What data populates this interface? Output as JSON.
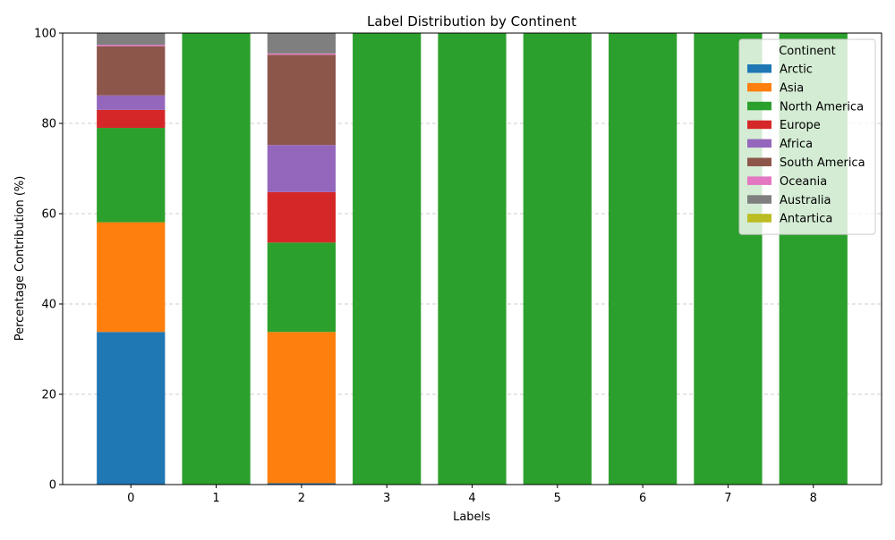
{
  "chart_data": {
    "type": "bar",
    "stacked": true,
    "title": "Label Distribution by Continent",
    "xlabel": "Labels",
    "ylabel": "Percentage Contribution (%)",
    "ylim": [
      0,
      100
    ],
    "yticks": [
      0,
      20,
      40,
      60,
      80,
      100
    ],
    "grid": "y-dashed",
    "legend": {
      "title": "Continent",
      "placement": "top-right"
    },
    "categories": [
      "0",
      "1",
      "2",
      "3",
      "4",
      "5",
      "6",
      "7",
      "8"
    ],
    "series": [
      {
        "name": "Arctic",
        "color": "#1f77b4",
        "values": [
          33.8,
          0,
          0.3,
          0,
          0,
          0,
          0,
          0,
          0
        ]
      },
      {
        "name": "Asia",
        "color": "#ff7f0e",
        "values": [
          24.3,
          0,
          33.5,
          0,
          0,
          0,
          0,
          0,
          0
        ]
      },
      {
        "name": "North America",
        "color": "#2ca02c",
        "values": [
          20.9,
          100,
          19.8,
          100,
          100,
          100,
          100,
          100,
          100
        ]
      },
      {
        "name": "Europe",
        "color": "#d62728",
        "values": [
          4.0,
          0,
          11.2,
          0,
          0,
          0,
          0,
          0,
          0
        ]
      },
      {
        "name": "Africa",
        "color": "#9467bd",
        "values": [
          3.2,
          0,
          10.4,
          0,
          0,
          0,
          0,
          0,
          0
        ]
      },
      {
        "name": "South America",
        "color": "#8c564b",
        "values": [
          10.9,
          0,
          20.0,
          0,
          0,
          0,
          0,
          0,
          0
        ]
      },
      {
        "name": "Oceania",
        "color": "#e377c2",
        "values": [
          0.3,
          0,
          0.3,
          0,
          0,
          0,
          0,
          0,
          0
        ]
      },
      {
        "name": "Australia",
        "color": "#7f7f7f",
        "values": [
          2.6,
          0,
          4.5,
          0,
          0,
          0,
          0,
          0,
          0
        ]
      },
      {
        "name": "Antartica",
        "color": "#bcbd22",
        "values": [
          0,
          0,
          0,
          0,
          0,
          0,
          0,
          0,
          0
        ]
      }
    ]
  }
}
